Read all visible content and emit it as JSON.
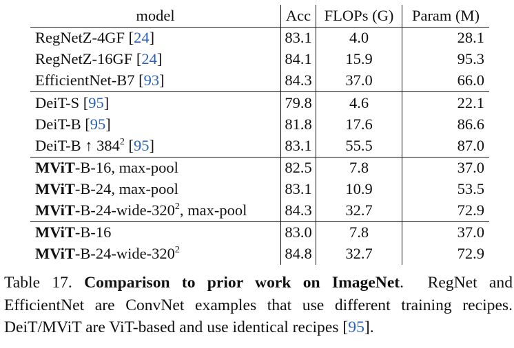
{
  "table": {
    "headers": {
      "model": "model",
      "acc": "Acc",
      "flops": "FLOPs (G)",
      "param": "Param (M)"
    },
    "groups": [
      [
        {
          "name": "RegNetZ-4GF",
          "cite": "24",
          "acc": "83.1",
          "flops": "4.0",
          "param": "28.1"
        },
        {
          "name": "RegNetZ-16GF",
          "cite": "24",
          "acc": "84.1",
          "flops": "15.9",
          "param": "95.3"
        },
        {
          "name": "EfficientNet-B7",
          "cite": "93",
          "acc": "84.3",
          "flops": "37.0",
          "param": "66.0"
        }
      ],
      [
        {
          "name": "DeiT-S",
          "cite": "95",
          "acc": "79.8",
          "flops": "4.6",
          "param": "22.1"
        },
        {
          "name": "DeiT-B",
          "cite": "95",
          "acc": "81.8",
          "flops": "17.6",
          "param": "86.6"
        },
        {
          "name": "DeiT-B ↑ 384",
          "sup": "2",
          "cite": "95",
          "acc": "83.1",
          "flops": "55.5",
          "param": "87.0"
        }
      ],
      [
        {
          "bold": "MViT",
          "rest": "-B-16, max-pool",
          "acc": "82.5",
          "flops": "7.8",
          "param": "37.0"
        },
        {
          "bold": "MViT",
          "rest": "-B-24, max-pool",
          "acc": "83.1",
          "flops": "10.9",
          "param": "53.5"
        },
        {
          "bold": "MViT",
          "rest": "-B-24-wide-320",
          "sup": "2",
          "tail": ", max-pool",
          "acc": "84.3",
          "flops": "32.7",
          "param": "72.9"
        }
      ],
      [
        {
          "bold": "MViT",
          "rest": "-B-16",
          "acc": "83.0",
          "flops": "7.8",
          "param": "37.0"
        },
        {
          "bold": "MViT",
          "rest": "-B-24-wide-320",
          "sup": "2",
          "acc": "84.8",
          "acc_bold": true,
          "flops": "32.7",
          "param": "72.9"
        }
      ]
    ]
  },
  "caption": {
    "label": "Table 17.",
    "title": "Comparison to prior work on ImageNet",
    "title_end": ".",
    "body": "RegNet and EfficientNet are ConvNet examples that use different training recipes. DeiT/MViT are ViT-based and use identical recipes",
    "cite": "95",
    "end": "."
  }
}
